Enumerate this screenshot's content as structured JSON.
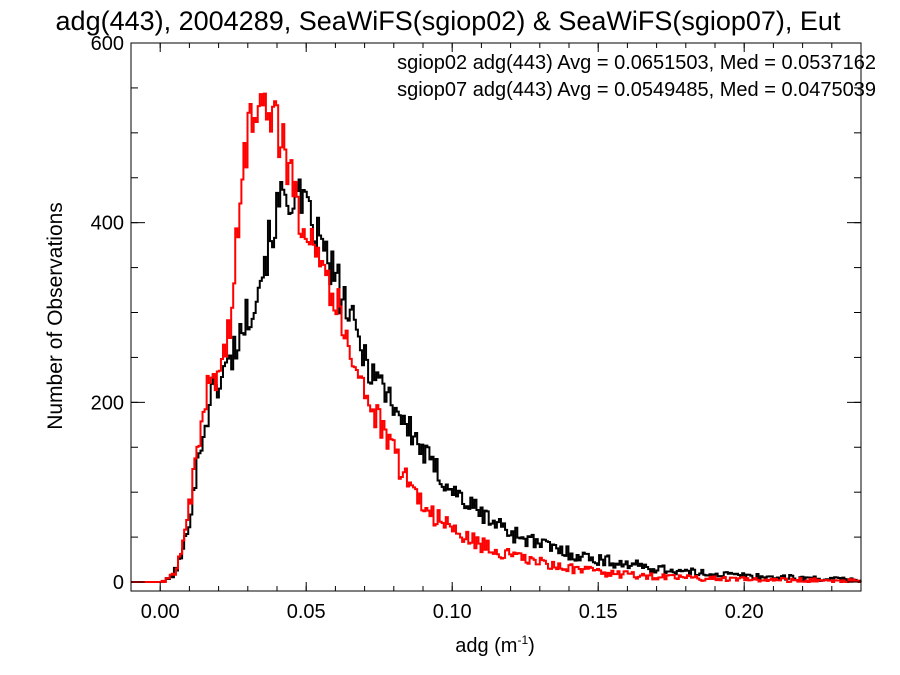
{
  "chart_data": {
    "type": "line",
    "title": "adg(443), 2004289, SeaWiFS(sgiop02) & SeaWiFS(sgiop07), Eut",
    "xlabel": "adg (m",
    "xlabel_sup": "-1",
    "xlabel_close": ")",
    "ylabel": "Number of Observations",
    "xlim": [
      -0.01,
      0.24
    ],
    "ylim": [
      -10,
      600
    ],
    "xticks": [
      0.0,
      0.05,
      0.1,
      0.15,
      0.2
    ],
    "xtick_labels": [
      "0.00",
      "0.05",
      "0.10",
      "0.15",
      "0.20"
    ],
    "yticks": [
      0,
      200,
      400,
      600
    ],
    "ytick_labels": [
      "0",
      "200",
      "400",
      "600"
    ],
    "grid": false,
    "legend_position": "top-right",
    "series": [
      {
        "name": "sgiop02 adg(443) Avg = 0.0651503, Med = 0.0537162",
        "color": "#000000",
        "step": "steps-mid",
        "points": [
          [
            -0.01,
            0
          ],
          [
            0.0,
            0
          ],
          [
            0.002,
            2
          ],
          [
            0.004,
            8
          ],
          [
            0.006,
            20
          ],
          [
            0.008,
            40
          ],
          [
            0.01,
            80
          ],
          [
            0.012,
            120
          ],
          [
            0.014,
            160
          ],
          [
            0.016,
            190
          ],
          [
            0.018,
            215
          ],
          [
            0.02,
            225
          ],
          [
            0.022,
            235
          ],
          [
            0.024,
            250
          ],
          [
            0.026,
            268
          ],
          [
            0.028,
            285
          ],
          [
            0.03,
            300
          ],
          [
            0.032,
            320
          ],
          [
            0.034,
            340
          ],
          [
            0.036,
            365
          ],
          [
            0.038,
            390
          ],
          [
            0.04,
            415
          ],
          [
            0.042,
            430
          ],
          [
            0.044,
            432
          ],
          [
            0.046,
            428
          ],
          [
            0.048,
            420
          ],
          [
            0.05,
            408
          ],
          [
            0.052,
            395
          ],
          [
            0.054,
            380
          ],
          [
            0.056,
            365
          ],
          [
            0.058,
            350
          ],
          [
            0.06,
            335
          ],
          [
            0.062,
            318
          ],
          [
            0.064,
            300
          ],
          [
            0.066,
            282
          ],
          [
            0.068,
            265
          ],
          [
            0.07,
            250
          ],
          [
            0.072,
            238
          ],
          [
            0.074,
            228
          ],
          [
            0.076,
            218
          ],
          [
            0.078,
            208
          ],
          [
            0.08,
            198
          ],
          [
            0.082,
            185
          ],
          [
            0.084,
            173
          ],
          [
            0.086,
            165
          ],
          [
            0.088,
            155
          ],
          [
            0.09,
            143
          ],
          [
            0.092,
            133
          ],
          [
            0.094,
            125
          ],
          [
            0.096,
            117
          ],
          [
            0.098,
            110
          ],
          [
            0.1,
            102
          ],
          [
            0.102,
            96
          ],
          [
            0.104,
            90
          ],
          [
            0.106,
            85
          ],
          [
            0.108,
            80
          ],
          [
            0.11,
            76
          ],
          [
            0.112,
            71
          ],
          [
            0.114,
            67
          ],
          [
            0.116,
            63
          ],
          [
            0.118,
            59
          ],
          [
            0.12,
            55
          ],
          [
            0.122,
            52
          ],
          [
            0.124,
            50
          ],
          [
            0.126,
            47
          ],
          [
            0.128,
            44
          ],
          [
            0.13,
            42
          ],
          [
            0.135,
            37
          ],
          [
            0.14,
            32
          ],
          [
            0.145,
            28
          ],
          [
            0.15,
            25
          ],
          [
            0.155,
            22
          ],
          [
            0.16,
            20
          ],
          [
            0.165,
            17
          ],
          [
            0.17,
            15
          ],
          [
            0.175,
            13
          ],
          [
            0.18,
            11
          ],
          [
            0.185,
            10
          ],
          [
            0.19,
            9
          ],
          [
            0.195,
            8
          ],
          [
            0.2,
            7
          ],
          [
            0.205,
            6
          ],
          [
            0.21,
            5
          ],
          [
            0.215,
            5
          ],
          [
            0.22,
            4
          ],
          [
            0.225,
            4
          ],
          [
            0.23,
            3
          ],
          [
            0.235,
            3
          ],
          [
            0.24,
            2
          ]
        ]
      },
      {
        "name": "sgiop07 adg(443) Avg = 0.0549485, Med = 0.0475039",
        "color": "#ff0000",
        "step": "steps-mid",
        "points": [
          [
            -0.01,
            0
          ],
          [
            0.0,
            0
          ],
          [
            0.002,
            2
          ],
          [
            0.004,
            8
          ],
          [
            0.006,
            22
          ],
          [
            0.008,
            45
          ],
          [
            0.01,
            90
          ],
          [
            0.012,
            135
          ],
          [
            0.014,
            180
          ],
          [
            0.016,
            215
          ],
          [
            0.018,
            230
          ],
          [
            0.02,
            235
          ],
          [
            0.022,
            258
          ],
          [
            0.024,
            300
          ],
          [
            0.026,
            380
          ],
          [
            0.028,
            455
          ],
          [
            0.03,
            505
          ],
          [
            0.032,
            535
          ],
          [
            0.034,
            550
          ],
          [
            0.036,
            545
          ],
          [
            0.038,
            525
          ],
          [
            0.04,
            505
          ],
          [
            0.042,
            480
          ],
          [
            0.044,
            455
          ],
          [
            0.046,
            425
          ],
          [
            0.048,
            410
          ],
          [
            0.05,
            400
          ],
          [
            0.052,
            390
          ],
          [
            0.054,
            370
          ],
          [
            0.056,
            352
          ],
          [
            0.058,
            330
          ],
          [
            0.06,
            310
          ],
          [
            0.062,
            290
          ],
          [
            0.064,
            270
          ],
          [
            0.066,
            252
          ],
          [
            0.068,
            232
          ],
          [
            0.07,
            212
          ],
          [
            0.072,
            195
          ],
          [
            0.074,
            180
          ],
          [
            0.076,
            168
          ],
          [
            0.078,
            153
          ],
          [
            0.08,
            140
          ],
          [
            0.082,
            128
          ],
          [
            0.084,
            116
          ],
          [
            0.086,
            105
          ],
          [
            0.088,
            95
          ],
          [
            0.09,
            87
          ],
          [
            0.092,
            80
          ],
          [
            0.094,
            73
          ],
          [
            0.096,
            67
          ],
          [
            0.098,
            62
          ],
          [
            0.1,
            58
          ],
          [
            0.102,
            54
          ],
          [
            0.104,
            50
          ],
          [
            0.106,
            47
          ],
          [
            0.108,
            44
          ],
          [
            0.11,
            41
          ],
          [
            0.112,
            38
          ],
          [
            0.114,
            35
          ],
          [
            0.116,
            33
          ],
          [
            0.118,
            31
          ],
          [
            0.12,
            29
          ],
          [
            0.122,
            27
          ],
          [
            0.124,
            26
          ],
          [
            0.126,
            24
          ],
          [
            0.128,
            23
          ],
          [
            0.13,
            21
          ],
          [
            0.135,
            18
          ],
          [
            0.14,
            15
          ],
          [
            0.145,
            13
          ],
          [
            0.15,
            11
          ],
          [
            0.155,
            9
          ],
          [
            0.16,
            8
          ],
          [
            0.165,
            7
          ],
          [
            0.17,
            6
          ],
          [
            0.175,
            5
          ],
          [
            0.18,
            5
          ],
          [
            0.185,
            4
          ],
          [
            0.19,
            4
          ],
          [
            0.195,
            3
          ],
          [
            0.2,
            3
          ],
          [
            0.205,
            3
          ],
          [
            0.21,
            2
          ],
          [
            0.215,
            2
          ],
          [
            0.22,
            2
          ],
          [
            0.225,
            2
          ],
          [
            0.23,
            1
          ],
          [
            0.235,
            1
          ],
          [
            0.24,
            1
          ]
        ]
      }
    ]
  }
}
